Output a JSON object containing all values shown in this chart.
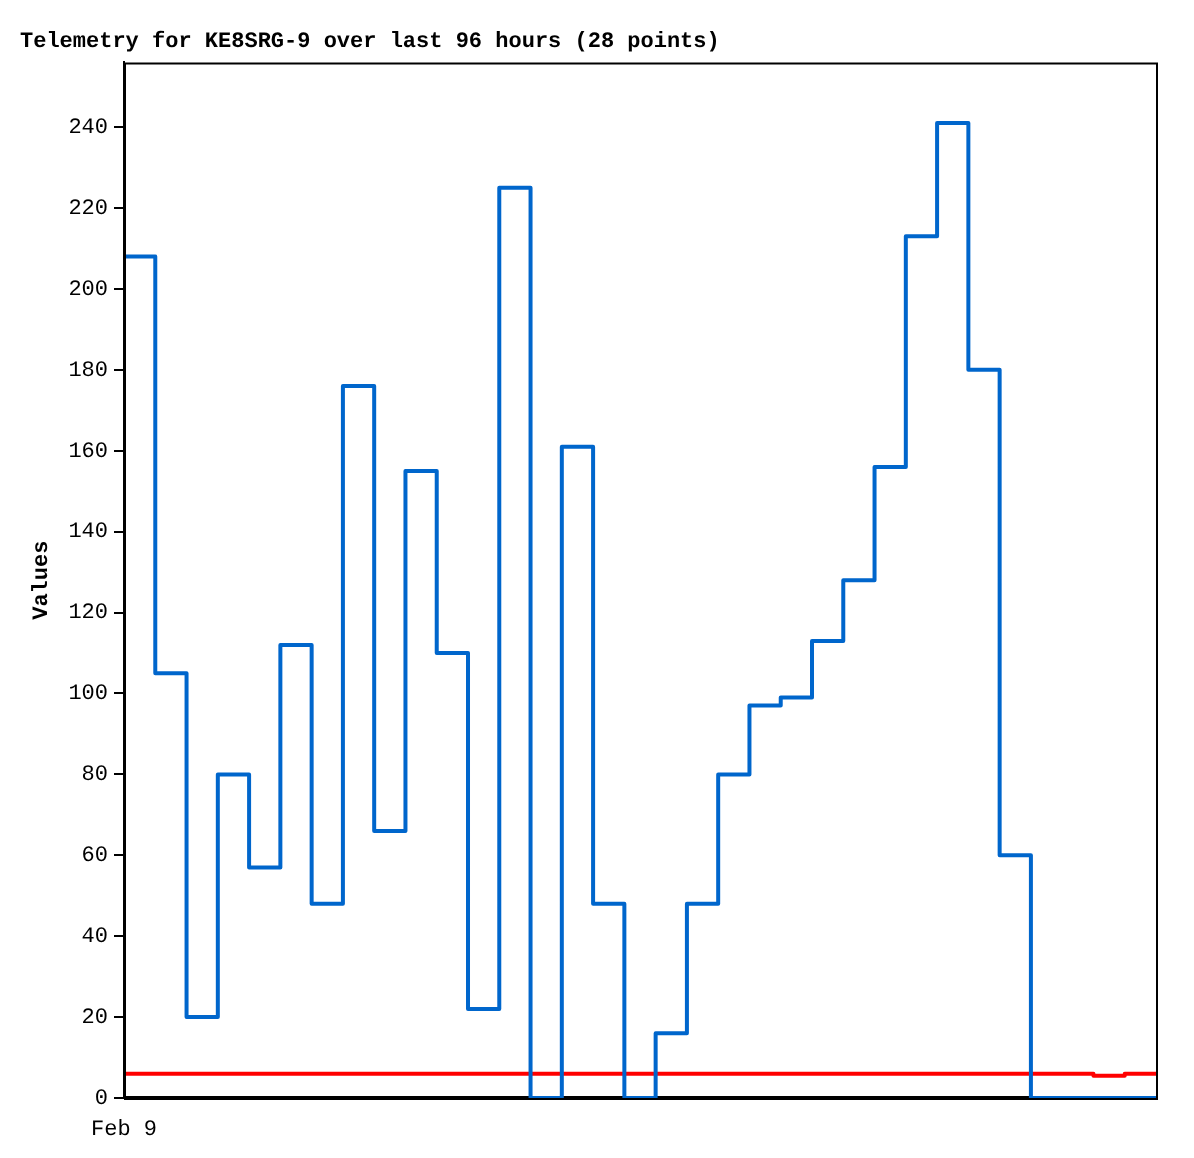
{
  "chart_data": {
    "type": "step",
    "title": "Telemetry for KE8SRG-9 over last 96 hours (28 points)",
    "ylabel": "Values",
    "annotations": [
      "Feb 9"
    ],
    "categories": [
      null,
      null,
      null,
      null,
      null,
      null,
      null,
      null,
      null,
      null,
      null,
      null,
      null,
      null,
      null,
      null,
      null,
      null,
      null,
      null,
      null,
      null,
      null,
      null,
      null,
      null,
      null,
      null,
      null,
      null,
      null,
      null,
      null,
      null
    ],
    "ylim": [
      0,
      256
    ],
    "yticks": [
      0,
      20,
      40,
      60,
      80,
      100,
      120,
      140,
      160,
      180,
      200,
      220,
      240
    ],
    "grid": false,
    "legend": false,
    "marker": "none",
    "series": [
      {
        "color": "#0066cc",
        "values": [
          208,
          105,
          20,
          80,
          57,
          112,
          48,
          176,
          66,
          155,
          110,
          22,
          225,
          0,
          161,
          48,
          0,
          16,
          48,
          80,
          97,
          99,
          113,
          128,
          156,
          213,
          241,
          180,
          60,
          0,
          0,
          0,
          0,
          0
        ]
      },
      {
        "color": "#ff0000",
        "values": [
          6,
          6,
          6,
          6,
          6,
          6,
          6,
          6,
          6,
          6,
          6,
          6,
          6,
          6,
          6,
          6,
          6,
          6,
          6,
          6,
          6,
          6,
          6,
          6,
          6,
          6,
          6,
          6,
          6,
          6,
          6,
          5.5,
          6,
          5.5
        ]
      },
      {
        "color": "#000000",
        "values": [
          0,
          0,
          0,
          0,
          0,
          0,
          0,
          0,
          0,
          0,
          0,
          0,
          0,
          0,
          0,
          0,
          0,
          0,
          0,
          0,
          0,
          0,
          0,
          0,
          0,
          0,
          0,
          0,
          0,
          0,
          0,
          0,
          0,
          0
        ]
      }
    ]
  }
}
